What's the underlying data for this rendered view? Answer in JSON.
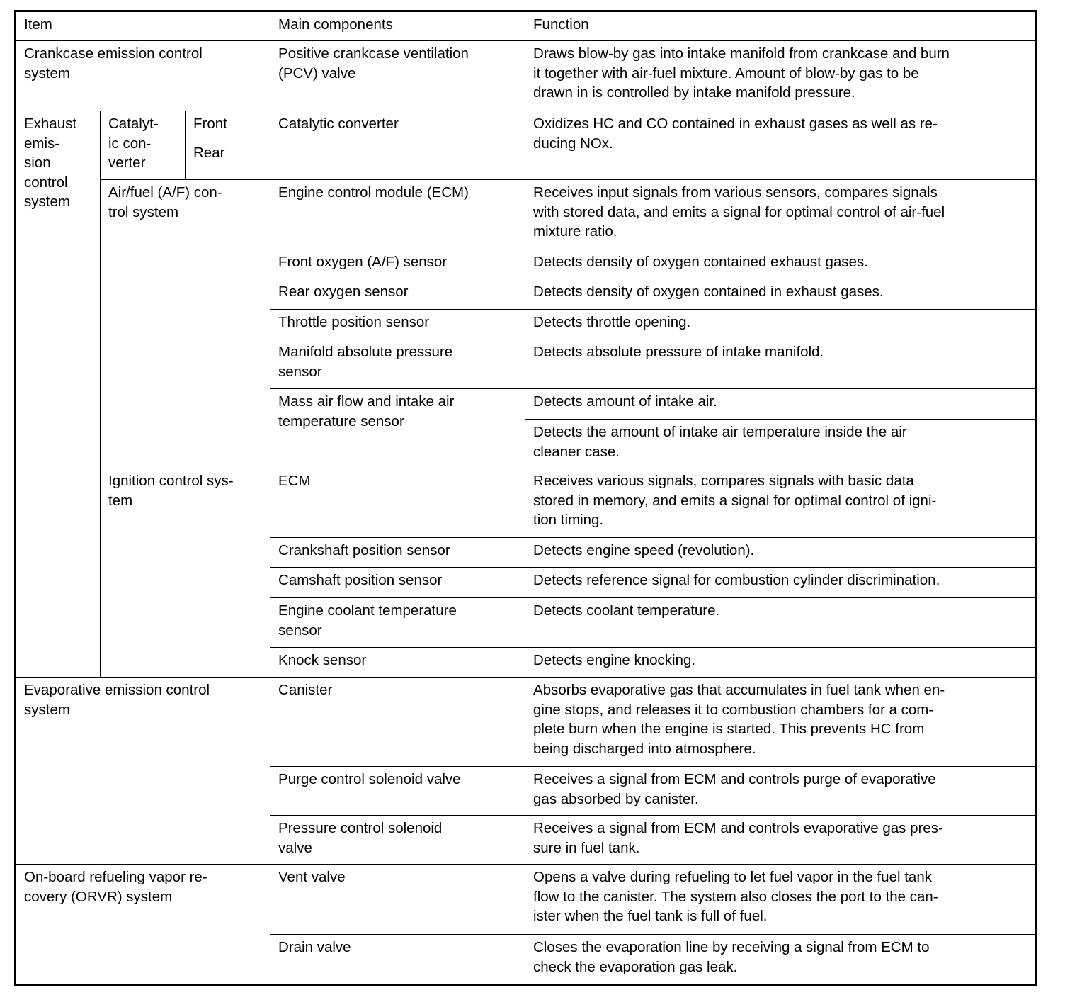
{
  "header": {
    "item": "Item",
    "components": "Main components",
    "function": "Function"
  },
  "items": {
    "crankcase": "Crankcase emission control\nsystem",
    "exhaust": "Exhaust\nemis-\nsion\ncontrol\nsystem",
    "catalytic": "Catalyt-\nic con-\nverter",
    "front": "Front",
    "rear": "Rear",
    "airfuel": "Air/fuel (A/F) con-\ntrol system",
    "ignition": "Ignition control sys-\ntem",
    "evaporative": "Evaporative emission control\nsystem",
    "orvr": "On-board refueling vapor re-\ncovery (ORVR) system"
  },
  "rows": [
    {
      "component": "Positive crankcase ventilation\n(PCV) valve",
      "function": "Draws blow-by gas into intake manifold from crankcase and burn\nit together with air-fuel mixture. Amount of blow-by gas to be\ndrawn in is controlled by intake manifold pressure."
    },
    {
      "component": "Catalytic converter",
      "function": "Oxidizes HC and CO contained in exhaust gases as well as re-\nducing NOx."
    },
    {
      "component": "Engine control module (ECM)",
      "function": "Receives input signals from various sensors, compares signals\nwith stored data, and emits a signal for optimal control of air-fuel\nmixture ratio."
    },
    {
      "component": "Front oxygen (A/F) sensor",
      "function": "Detects density of oxygen contained exhaust gases."
    },
    {
      "component": "Rear oxygen sensor",
      "function": "Detects density of oxygen contained in exhaust gases."
    },
    {
      "component": "Throttle position sensor",
      "function": "Detects throttle opening."
    },
    {
      "component": "Manifold absolute pressure\nsensor",
      "function": "Detects absolute pressure of intake manifold."
    },
    {
      "component": "Mass air flow and intake air\ntemperature sensor",
      "function": "Detects amount of intake air.",
      "function2": "Detects the amount of intake air temperature inside the air\ncleaner case."
    },
    {
      "component": "ECM",
      "function": "Receives various signals, compares signals with basic data\nstored in memory, and emits a signal for optimal control of igni-\ntion timing."
    },
    {
      "component": "Crankshaft position sensor",
      "function": "Detects engine speed (revolution)."
    },
    {
      "component": "Camshaft position sensor",
      "function": "Detects reference signal for combustion cylinder discrimination."
    },
    {
      "component": "Engine coolant temperature\nsensor",
      "function": "Detects coolant temperature."
    },
    {
      "component": "Knock sensor",
      "function": "Detects engine knocking."
    },
    {
      "component": "Canister",
      "function": "Absorbs evaporative gas that accumulates in fuel tank when en-\ngine stops, and releases it to combustion chambers for a com-\nplete burn when the engine is started. This prevents HC from\nbeing discharged into atmosphere."
    },
    {
      "component": "Purge control solenoid valve",
      "function": "Receives a signal from ECM and controls purge of evaporative\ngas absorbed by canister."
    },
    {
      "component": "Pressure control solenoid\nvalve",
      "function": "Receives a signal from ECM and controls evaporative gas pres-\nsure in fuel tank."
    },
    {
      "component": "Vent valve",
      "function": "Opens a valve during refueling to let fuel vapor in the fuel tank\nflow to the canister. The system also closes the port to the can-\nister when the fuel tank is full of fuel."
    },
    {
      "component": "Drain valve",
      "function": "Closes the evaporation line by receiving a signal from ECM to\ncheck the evaporation gas leak."
    }
  ]
}
